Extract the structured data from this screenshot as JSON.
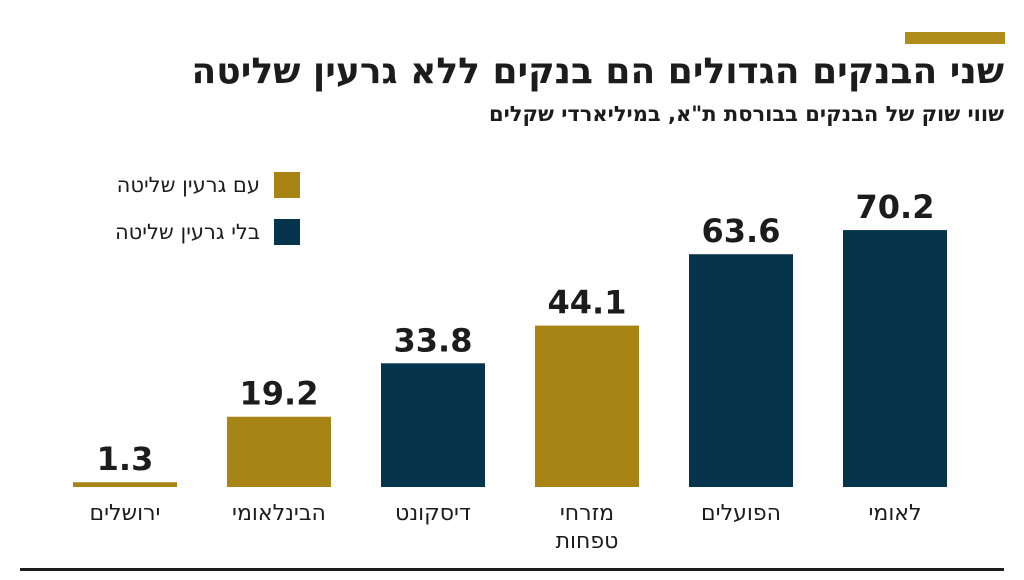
{
  "header": {
    "title": "שני הבנקים הגדולים הם בנקים ללא גרעין שליטה",
    "subtitle": "שווי שוק של הבנקים בבורסת ת\"א, במיליארדי שקלים"
  },
  "colors": {
    "with_core": "#a88414",
    "without_core": "#06344d",
    "accent": "#b08d1a",
    "text": "#1c1c1c"
  },
  "legend": [
    {
      "label": "עם גרעין שליטה",
      "series": "with_core"
    },
    {
      "label": "בלי גרעין שליטה",
      "series": "without_core"
    }
  ],
  "chart_data": {
    "type": "bar",
    "title": "שני הבנקים הגדולים הם בנקים ללא גרעין שליטה",
    "subtitle": "שווי שוק של הבנקים בבורסת ת\"א, במיליארדי שקלים",
    "xlabel": "",
    "ylabel": "",
    "ylim": [
      0,
      75
    ],
    "grid": false,
    "legend_position": "top-left",
    "categories": [
      {
        "name_lines": [
          "ירושלים"
        ],
        "value": 1.3,
        "label": "1.3",
        "group": "with_core"
      },
      {
        "name_lines": [
          "הבינלאומי"
        ],
        "value": 19.2,
        "label": "19.2",
        "group": "with_core"
      },
      {
        "name_lines": [
          "דיסקונט"
        ],
        "value": 33.8,
        "label": "33.8",
        "group": "without_core"
      },
      {
        "name_lines": [
          "מזרחי",
          "טפחות"
        ],
        "value": 44.1,
        "label": "44.1",
        "group": "with_core"
      },
      {
        "name_lines": [
          "הפועלים"
        ],
        "value": 63.6,
        "label": "63.6",
        "group": "without_core"
      },
      {
        "name_lines": [
          "לאומי"
        ],
        "value": 70.2,
        "label": "70.2",
        "group": "without_core"
      }
    ]
  }
}
